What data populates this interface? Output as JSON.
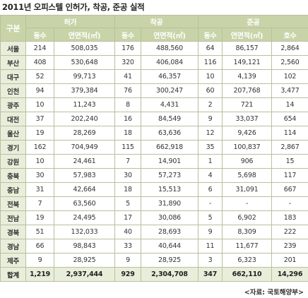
{
  "title": "2011년 오피스텔 인허가, 착공, 준공 실적",
  "table": {
    "corner": "구분",
    "groups": [
      "허가",
      "착공",
      "준공"
    ],
    "subheaders": [
      "동수",
      "연면적(㎡)",
      "동수",
      "연면적(㎡)",
      "동수",
      "연면적(㎡)",
      "호수"
    ],
    "rows": [
      [
        "서울",
        "214",
        "508,035",
        "176",
        "488,560",
        "64",
        "86,157",
        "2,864"
      ],
      [
        "부산",
        "408",
        "530,648",
        "320",
        "406,084",
        "116",
        "149,121",
        "2,560"
      ],
      [
        "대구",
        "52",
        "99,713",
        "41",
        "46,357",
        "10",
        "4,139",
        "102"
      ],
      [
        "인천",
        "94",
        "379,384",
        "76",
        "300,247",
        "60",
        "207,768",
        "3,477"
      ],
      [
        "광주",
        "10",
        "11,243",
        "8",
        "4,431",
        "2",
        "721",
        "14"
      ],
      [
        "대전",
        "37",
        "202,240",
        "16",
        "84,549",
        "9",
        "33,037",
        "654"
      ],
      [
        "울산",
        "19",
        "28,269",
        "18",
        "63,636",
        "12",
        "9,426",
        "114"
      ],
      [
        "경기",
        "162",
        "704,949",
        "115",
        "662,918",
        "35",
        "100,837",
        "2,867"
      ],
      [
        "강원",
        "10",
        "24,461",
        "7",
        "14,901",
        "1",
        "906",
        "15"
      ],
      [
        "충북",
        "30",
        "57,983",
        "30",
        "57,273",
        "4",
        "5,698",
        "117"
      ],
      [
        "충남",
        "31",
        "42,664",
        "18",
        "15,513",
        "6",
        "31,091",
        "667"
      ],
      [
        "전북",
        "7",
        "63,560",
        "5",
        "31,890",
        "-",
        "-",
        "-"
      ],
      [
        "전남",
        "19",
        "24,495",
        "17",
        "30,086",
        "5",
        "6,902",
        "183"
      ],
      [
        "경북",
        "51",
        "132,033",
        "40",
        "28,693",
        "9",
        "8,309",
        "222"
      ],
      [
        "경남",
        "66",
        "98,843",
        "33",
        "40,644",
        "11",
        "11,677",
        "239"
      ],
      [
        "제주",
        "9",
        "28,925",
        "9",
        "28,925",
        "3",
        "6,323",
        "201"
      ]
    ],
    "total": [
      "합계",
      "1,219",
      "2,937,444",
      "929",
      "2,304,708",
      "347",
      "662,110",
      "14,296"
    ]
  },
  "source": "<자료: 국토해양부>"
}
